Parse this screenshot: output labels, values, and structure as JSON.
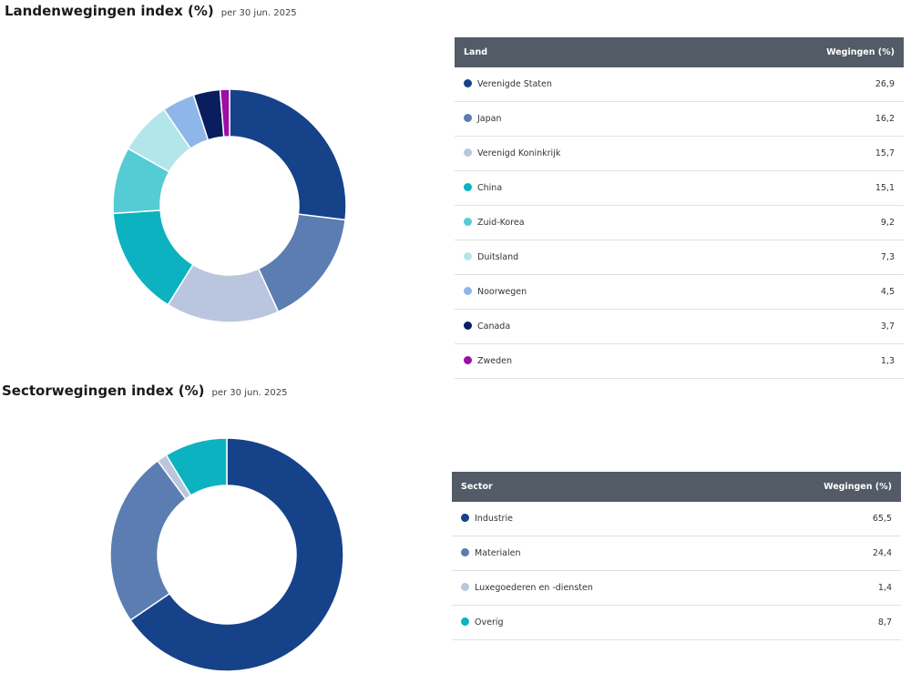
{
  "country": {
    "title": "Landenwegingen index (%)",
    "asof": "per  30 jun. 2025",
    "table_headers": {
      "label": "Land",
      "value": "Wegingen (%)"
    },
    "rows": [
      {
        "label": "Verenigde Staten",
        "value": "26,9",
        "color": "#16428a"
      },
      {
        "label": "Japan",
        "value": "16,2",
        "color": "#5b7db1"
      },
      {
        "label": "Verenigd Koninkrijk",
        "value": "15,7",
        "color": "#b9c6de"
      },
      {
        "label": "China",
        "value": "15,1",
        "color": "#0cb2bf"
      },
      {
        "label": "Zuid-Korea",
        "value": "9,2",
        "color": "#55ccd4"
      },
      {
        "label": "Duitsland",
        "value": "7,3",
        "color": "#b2e6ea"
      },
      {
        "label": "Noorwegen",
        "value": "4,5",
        "color": "#8fb6e8"
      },
      {
        "label": "Canada",
        "value": "3,7",
        "color": "#0a1d5e"
      },
      {
        "label": "Zweden",
        "value": "1,3",
        "color": "#9b0ea8"
      }
    ]
  },
  "sector": {
    "title": "Sectorwegingen index (%)",
    "asof": "per  30 jun. 2025",
    "table_headers": {
      "label": "Sector",
      "value": "Wegingen (%)"
    },
    "rows": [
      {
        "label": "Industrie",
        "value": "65,5",
        "color": "#16428a"
      },
      {
        "label": "Materialen",
        "value": "24,4",
        "color": "#5b7db1"
      },
      {
        "label": "Luxegoederen en -diensten",
        "value": "1,4",
        "color": "#b9c6de"
      },
      {
        "label": "Overig",
        "value": "8,7",
        "color": "#0cb2bf"
      }
    ]
  },
  "chart_data": [
    {
      "type": "pie",
      "title": "Landenwegingen index (%)",
      "categories": [
        "Verenigde Staten",
        "Japan",
        "Verenigd Koninkrijk",
        "China",
        "Zuid-Korea",
        "Duitsland",
        "Noorwegen",
        "Canada",
        "Zweden"
      ],
      "values": [
        26.9,
        16.2,
        15.7,
        15.1,
        9.2,
        7.3,
        4.5,
        3.7,
        1.3
      ],
      "colors": [
        "#16428a",
        "#5b7db1",
        "#b9c6de",
        "#0cb2bf",
        "#55ccd4",
        "#b2e6ea",
        "#8fb6e8",
        "#0a1d5e",
        "#9b0ea8"
      ]
    },
    {
      "type": "pie",
      "title": "Sectorwegingen index (%)",
      "categories": [
        "Industrie",
        "Materialen",
        "Luxegoederen en -diensten",
        "Overig"
      ],
      "values": [
        65.5,
        24.4,
        1.4,
        8.7
      ],
      "colors": [
        "#16428a",
        "#5b7db1",
        "#b9c6de",
        "#0cb2bf"
      ]
    }
  ]
}
